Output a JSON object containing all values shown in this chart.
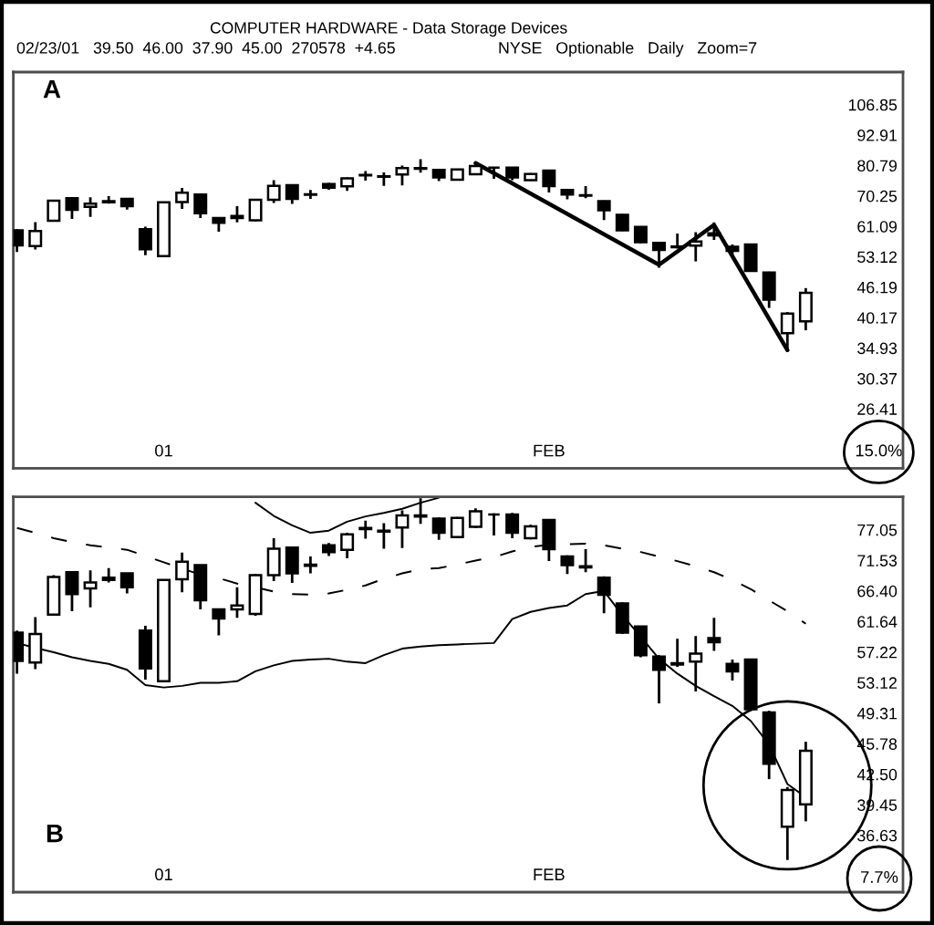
{
  "chart_data": [
    {
      "type": "candlestick",
      "title": "COMPUTER HARDWARE - Data Storage Devices",
      "subtitle": "02/23/01   39.50  46.00  37.90  45.00  270578  +4.65",
      "annotations": [
        "NYSE   Optionable   Daily   Zoom=7",
        "A"
      ],
      "ylabel": "15.0%",
      "categories": [
        null,
        null,
        null,
        null,
        null,
        null,
        null,
        null,
        "01",
        null,
        null,
        null,
        null,
        null,
        null,
        null,
        null,
        null,
        null,
        null,
        null,
        null,
        null,
        null,
        null,
        null,
        null,
        null,
        null,
        "FEB",
        null,
        null,
        null,
        null,
        null,
        null,
        null,
        null,
        null,
        null,
        null,
        null,
        null,
        null
      ],
      "ohlc": [
        [
          60.0,
          60.3,
          54.3,
          56.0
        ],
        [
          55.8,
          62.3,
          54.9,
          59.8
        ],
        [
          62.7,
          69.0,
          62.5,
          68.7
        ],
        [
          69.5,
          69.6,
          63.2,
          65.9
        ],
        [
          66.8,
          69.8,
          63.8,
          67.8
        ],
        [
          68.2,
          70.2,
          67.8,
          68.6
        ],
        [
          69.3,
          69.4,
          66.0,
          67.0
        ],
        [
          60.3,
          61.0,
          53.5,
          55.0
        ],
        [
          53.3,
          68.3,
          53.2,
          68.2
        ],
        [
          68.3,
          72.9,
          66.2,
          71.3
        ],
        [
          70.7,
          70.8,
          63.5,
          64.9
        ],
        [
          63.5,
          63.6,
          59.6,
          62.1
        ],
        [
          63.5,
          67.0,
          62.2,
          64.1
        ],
        [
          62.8,
          69.2,
          62.5,
          69.0
        ],
        [
          69.0,
          75.5,
          68.0,
          73.6
        ],
        [
          73.8,
          74.0,
          67.7,
          69.3
        ],
        [
          70.6,
          72.2,
          69.3,
          70.8
        ],
        [
          74.2,
          74.6,
          72.3,
          73.0
        ],
        [
          73.4,
          76.5,
          71.9,
          76.2
        ],
        [
          77.2,
          78.8,
          75.4,
          77.4
        ],
        [
          76.7,
          78.3,
          73.6,
          76.9
        ],
        [
          77.5,
          80.8,
          73.7,
          79.8
        ],
        [
          79.6,
          83.2,
          78.2,
          79.8
        ],
        [
          79.2,
          79.4,
          75.2,
          76.5
        ],
        [
          75.7,
          79.5,
          75.5,
          79.3
        ],
        [
          77.6,
          81.2,
          77.4,
          80.6
        ],
        [
          80.0,
          80.2,
          76.0,
          80.0
        ],
        [
          80.0,
          80.3,
          75.5,
          76.5
        ],
        [
          75.5,
          78.0,
          75.3,
          77.7
        ],
        [
          78.9,
          79.0,
          71.4,
          73.5
        ],
        [
          72.2,
          72.4,
          69.2,
          70.7
        ],
        [
          70.3,
          73.5,
          69.5,
          70.5
        ],
        [
          68.6,
          68.8,
          62.9,
          65.8
        ],
        [
          64.4,
          64.6,
          59.8,
          60.0
        ],
        [
          60.9,
          61.0,
          56.5,
          56.8
        ],
        [
          56.6,
          56.8,
          50.5,
          54.8
        ],
        [
          55.5,
          59.1,
          55.2,
          55.7
        ],
        [
          55.9,
          59.5,
          52.0,
          57.0
        ],
        [
          59.2,
          62.2,
          57.4,
          58.6
        ],
        [
          55.6,
          56.2,
          53.4,
          54.6
        ],
        [
          56.2,
          56.3,
          49.6,
          49.8
        ],
        [
          49.4,
          49.6,
          42.0,
          43.6
        ],
        [
          37.4,
          41.2,
          34.5,
          40.9
        ],
        [
          39.5,
          46.0,
          37.9,
          45.0
        ]
      ],
      "series": [
        {
          "type": "line",
          "color": "#000000",
          "values": [
            null,
            null,
            null,
            null,
            null,
            null,
            null,
            null,
            null,
            null,
            null,
            null,
            null,
            null,
            null,
            null,
            null,
            null,
            null,
            null,
            null,
            null,
            null,
            null,
            null,
            81.7,
            null,
            null,
            null,
            null,
            null,
            null,
            null,
            null,
            null,
            51.2,
            null,
            null,
            61.5,
            null,
            null,
            null,
            34.6,
            null
          ]
        }
      ],
      "log": true,
      "ylim": [
        20.1,
        124.1
      ],
      "yticks": [
        106.85,
        92.91,
        80.79,
        70.25,
        61.09,
        53.12,
        46.19,
        40.17,
        34.93,
        30.37,
        26.41
      ]
    },
    {
      "type": "candlestick",
      "annotations": [
        "B"
      ],
      "ylabel": "7.7%",
      "categories": [
        null,
        null,
        null,
        null,
        null,
        null,
        null,
        null,
        "01",
        null,
        null,
        null,
        null,
        null,
        null,
        null,
        null,
        null,
        null,
        null,
        null,
        null,
        null,
        null,
        null,
        null,
        null,
        null,
        null,
        "FEB",
        null,
        null,
        null,
        null,
        null,
        null,
        null,
        null,
        null,
        null,
        null,
        null,
        null,
        null
      ],
      "ohlc": [
        [
          60.0,
          60.3,
          54.3,
          56.0
        ],
        [
          55.8,
          62.3,
          54.9,
          59.8
        ],
        [
          62.7,
          69.0,
          62.5,
          68.7
        ],
        [
          69.5,
          69.6,
          63.2,
          65.9
        ],
        [
          66.8,
          69.8,
          63.8,
          67.8
        ],
        [
          68.2,
          70.2,
          67.8,
          68.6
        ],
        [
          69.3,
          69.4,
          66.0,
          67.0
        ],
        [
          60.3,
          61.0,
          53.5,
          55.0
        ],
        [
          53.3,
          68.3,
          53.2,
          68.2
        ],
        [
          68.3,
          72.9,
          66.2,
          71.3
        ],
        [
          70.7,
          70.8,
          63.5,
          64.9
        ],
        [
          63.5,
          63.6,
          59.6,
          62.1
        ],
        [
          63.5,
          67.0,
          62.2,
          64.1
        ],
        [
          62.8,
          69.2,
          62.5,
          69.0
        ],
        [
          69.0,
          75.5,
          68.0,
          73.6
        ],
        [
          73.8,
          74.0,
          67.7,
          69.3
        ],
        [
          70.6,
          72.2,
          69.3,
          70.8
        ],
        [
          74.2,
          74.6,
          72.3,
          73.0
        ],
        [
          73.4,
          76.5,
          71.9,
          76.2
        ],
        [
          77.2,
          78.8,
          75.4,
          77.4
        ],
        [
          76.7,
          78.3,
          73.6,
          76.9
        ],
        [
          77.5,
          80.8,
          73.7,
          79.8
        ],
        [
          79.6,
          83.2,
          78.2,
          79.8
        ],
        [
          79.2,
          79.4,
          75.2,
          76.5
        ],
        [
          75.7,
          79.5,
          75.5,
          79.3
        ],
        [
          77.6,
          81.2,
          77.4,
          80.6
        ],
        [
          80.0,
          80.2,
          76.0,
          80.0
        ],
        [
          80.0,
          80.3,
          75.5,
          76.5
        ],
        [
          75.5,
          78.0,
          75.3,
          77.7
        ],
        [
          78.9,
          79.0,
          71.4,
          73.5
        ],
        [
          72.2,
          72.4,
          69.2,
          70.7
        ],
        [
          70.3,
          73.5,
          69.5,
          70.5
        ],
        [
          68.6,
          68.8,
          62.9,
          65.8
        ],
        [
          64.4,
          64.6,
          59.8,
          60.0
        ],
        [
          60.9,
          61.0,
          56.5,
          56.8
        ],
        [
          56.6,
          56.8,
          50.5,
          54.8
        ],
        [
          55.5,
          59.1,
          55.2,
          55.7
        ],
        [
          55.9,
          59.5,
          52.0,
          57.0
        ],
        [
          59.2,
          62.2,
          57.4,
          58.6
        ],
        [
          55.6,
          56.2,
          53.4,
          54.6
        ],
        [
          56.2,
          56.3,
          49.6,
          49.8
        ],
        [
          49.4,
          49.6,
          42.0,
          43.6
        ],
        [
          37.4,
          41.2,
          34.5,
          40.9
        ],
        [
          39.5,
          46.0,
          37.9,
          45.0
        ]
      ],
      "series": [
        {
          "type": "line",
          "color": "#000000",
          "line_style": "solid",
          "values": [
            null,
            null,
            null,
            null,
            null,
            null,
            null,
            null,
            null,
            null,
            null,
            null,
            null,
            82.3,
            79.7,
            77.9,
            76.5,
            76.9,
            78.6,
            79.6,
            80.3,
            81.1,
            82.3,
            83.3,
            null,
            null,
            null,
            null,
            null,
            null,
            null,
            null,
            null,
            null,
            null,
            null,
            null,
            null,
            null,
            null,
            null,
            null,
            null,
            null
          ]
        },
        {
          "type": "line",
          "color": "#000000",
          "line_style": "dashed",
          "values": [
            77.4,
            76.5,
            75.5,
            74.8,
            74.2,
            73.8,
            73.4,
            72.3,
            71.2,
            70.1,
            69.1,
            68.5,
            67.6,
            67.0,
            66.3,
            65.9,
            65.8,
            66.0,
            66.6,
            67.3,
            68.4,
            69.3,
            70.0,
            70.2,
            70.8,
            71.5,
            72.1,
            73.1,
            73.9,
            74.3,
            74.4,
            74.5,
            74.2,
            73.6,
            73.0,
            72.2,
            71.4,
            70.5,
            69.5,
            68.2,
            66.7,
            64.9,
            63.2,
            61.3
          ]
        },
        {
          "type": "line",
          "color": "#000000",
          "line_style": "solid",
          "values": [
            58.5,
            57.8,
            57.2,
            56.5,
            56.0,
            55.6,
            54.8,
            52.8,
            52.5,
            52.7,
            53.1,
            53.1,
            53.3,
            54.6,
            55.4,
            56.0,
            56.2,
            56.3,
            55.9,
            55.7,
            56.8,
            57.7,
            58.0,
            58.2,
            58.3,
            58.4,
            58.5,
            62.0,
            63.1,
            63.7,
            64.1,
            65.9,
            66.4,
            62.6,
            59.4,
            56.3,
            54.3,
            52.7,
            51.4,
            50.2,
            48.4,
            45.7,
            41.5,
            40.2
          ]
        }
      ],
      "log": true,
      "ylim": [
        31.9,
        83.5
      ],
      "yticks": [
        77.05,
        71.53,
        {
          "value": 66.4,
          "label": "66.40"
        },
        61.64,
        57.22,
        53.12,
        49.31,
        45.78,
        {
          "value": 42.5,
          "label": "42.50"
        },
        39.45,
        36.63
      ]
    }
  ]
}
